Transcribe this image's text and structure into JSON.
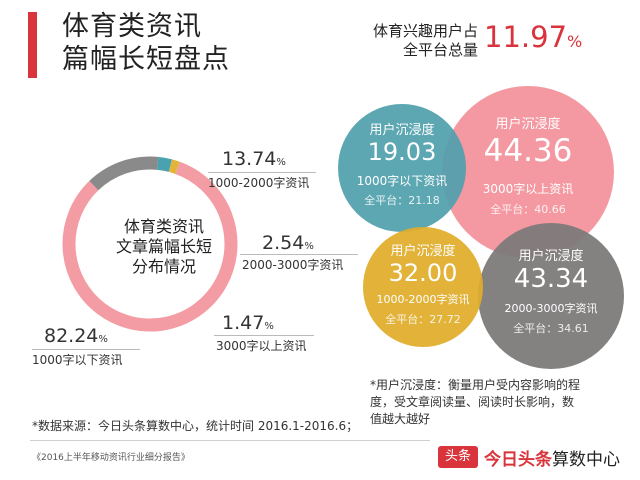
{
  "header": {
    "title_line1": "体育类资讯",
    "title_line2": "篇幅长短盘点",
    "share_label_line1": "体育兴趣用户占",
    "share_label_line2": "全平台总量",
    "share_value": "11.97",
    "share_unit": "%"
  },
  "donut": {
    "center_line1": "体育类资讯",
    "center_line2": "文章篇幅长短",
    "center_line3": "分布情况",
    "annotations": [
      {
        "pct": "13.74",
        "unit": "%",
        "category": "1000-2000字资讯"
      },
      {
        "pct": "2.54",
        "unit": "%",
        "category": "2000-3000字资讯"
      },
      {
        "pct": "1.47",
        "unit": "%",
        "category": "3000字以上资讯"
      },
      {
        "pct": "82.24",
        "unit": "%",
        "category": "1000字以下资讯"
      }
    ]
  },
  "bubbles": [
    {
      "label": "用户沉浸度",
      "value": "19.03",
      "category": "1000字以下资讯",
      "platform": "全平台：21.18"
    },
    {
      "label": "用户沉浸度",
      "value": "44.36",
      "category": "3000字以上资讯",
      "platform": "全平台：40.66"
    },
    {
      "label": "用户沉浸度",
      "value": "32.00",
      "category": "1000-2000字资讯",
      "platform": "全平台：27.72"
    },
    {
      "label": "用户沉浸度",
      "value": "43.34",
      "category": "2000-3000字资讯",
      "platform": "全平台：34.61"
    }
  ],
  "note": {
    "line1": "*用户沉浸度：衡量用户受内容影响的程",
    "line2": "度，受文章阅读量、阅读时长影响，数",
    "line3": "值越大越好"
  },
  "source": "*数据来源：今日头条算数中心，统计时间 2016.1-2016.6；",
  "report": "《2016上半年移动资讯行业细分报告》",
  "logo": {
    "badge": "头条",
    "brand": "今日头条",
    "suffix": "算数中心"
  },
  "colors": {
    "red": "#d9343c",
    "pink": "#f49ca3",
    "gray": "#8a8a8a",
    "teal": "#4aa2b0",
    "gold": "#e2b53a",
    "bubble_teal": "#4f9fac",
    "bubble_pink": "#f3939c",
    "bubble_gold": "#e0ac2a",
    "bubble_gray": "#7d7a7a"
  },
  "chart_data": [
    {
      "type": "pie",
      "categories": [
        "1000字以下资讯",
        "1000-2000字资讯",
        "2000-3000字资讯",
        "3000字以上资讯"
      ],
      "values": [
        82.24,
        13.74,
        2.54,
        1.47
      ]
    },
    {
      "type": "scatter",
      "ylabel": "用户沉浸度",
      "categories": [
        "1000字以下资讯",
        "1000-2000字资讯",
        "2000-3000字资讯",
        "3000字以上资讯"
      ],
      "values": [
        19.03,
        32.0,
        43.34,
        44.36
      ],
      "platform_values": [
        21.18,
        27.72,
        34.61,
        40.66
      ]
    }
  ]
}
